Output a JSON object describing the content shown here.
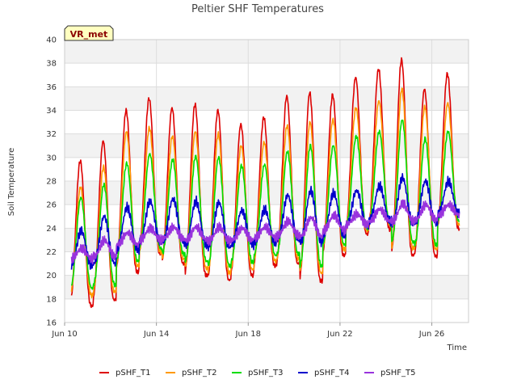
{
  "chart_data": {
    "type": "line",
    "title": "Peltier SHF Temperatures",
    "xlabel": "Time",
    "ylabel": "Soil Temperature",
    "badge": "VR_met",
    "x_start": "2023-06-10",
    "x_range_days": [
      0,
      17.6
    ],
    "ylim": [
      16,
      40
    ],
    "yticks": [
      16,
      18,
      20,
      22,
      24,
      26,
      28,
      30,
      32,
      34,
      36,
      38,
      40
    ],
    "xticks": [
      {
        "day": 0,
        "label": "Jun 10"
      },
      {
        "day": 4,
        "label": "Jun 14"
      },
      {
        "day": 8,
        "label": "Jun 18"
      },
      {
        "day": 12,
        "label": "Jun 22"
      },
      {
        "day": 16,
        "label": "Jun 26"
      }
    ],
    "grid": true,
    "banded_background": true,
    "legend_position": "bottom",
    "data_start_day": 0.3,
    "data_end_day": 17.2,
    "series": [
      {
        "name": "pSHF_T1",
        "color": "#dd0000",
        "daily_max": [
          29.7,
          31.4,
          34.0,
          35.0,
          34.2,
          34.5,
          34.0,
          32.8,
          33.4,
          35.2,
          35.5,
          35.3,
          36.8,
          37.5,
          38.3,
          35.8,
          37.1
        ],
        "daily_min": [
          17.4,
          17.9,
          20.3,
          21.8,
          21.0,
          20.0,
          19.6,
          20.0,
          20.8,
          21.0,
          19.5,
          21.7,
          23.5,
          23.9,
          21.7,
          21.6,
          24.0
        ]
      },
      {
        "name": "pSHF_T2",
        "color": "#ff9900",
        "daily_max": [
          27.5,
          29.2,
          32.2,
          32.5,
          31.8,
          32.2,
          32.0,
          31.0,
          31.3,
          32.7,
          33.0,
          33.2,
          34.2,
          34.8,
          35.8,
          34.3,
          34.6
        ],
        "daily_min": [
          18.3,
          18.6,
          20.8,
          22.0,
          21.4,
          20.6,
          20.2,
          20.5,
          21.2,
          21.4,
          20.2,
          22.2,
          23.8,
          24.2,
          22.3,
          22.2,
          24.3
        ]
      },
      {
        "name": "pSHF_T3",
        "color": "#00dd00",
        "daily_max": [
          26.6,
          27.7,
          29.5,
          30.3,
          29.8,
          30.1,
          30.0,
          29.3,
          29.4,
          30.5,
          31.0,
          31.0,
          31.8,
          32.2,
          33.2,
          31.6,
          32.2
        ],
        "daily_min": [
          18.9,
          19.2,
          21.2,
          22.3,
          21.8,
          21.2,
          20.8,
          21.1,
          21.7,
          21.8,
          20.8,
          22.6,
          24.0,
          24.4,
          22.8,
          22.6,
          24.6
        ]
      },
      {
        "name": "pSHF_T4",
        "color": "#0000cc",
        "daily_max": [
          23.8,
          25.0,
          25.8,
          26.3,
          26.5,
          26.3,
          26.2,
          25.5,
          25.6,
          26.8,
          27.2,
          27.0,
          27.2,
          27.6,
          28.3,
          28.0,
          28.0
        ],
        "daily_min": [
          20.8,
          21.0,
          22.2,
          22.8,
          22.8,
          22.6,
          22.4,
          22.6,
          22.8,
          23.0,
          22.8,
          23.4,
          24.2,
          24.6,
          24.4,
          24.4,
          25.2
        ]
      },
      {
        "name": "pSHF_T5",
        "color": "#9933dd",
        "daily_max": [
          22.3,
          23.0,
          23.6,
          24.0,
          24.1,
          24.1,
          24.1,
          24.0,
          24.1,
          24.6,
          24.9,
          25.1,
          25.2,
          25.6,
          26.1,
          26.0,
          26.0
        ],
        "daily_min": [
          21.4,
          21.6,
          22.6,
          23.0,
          23.1,
          23.0,
          22.9,
          23.0,
          23.2,
          23.4,
          23.3,
          23.8,
          24.3,
          24.6,
          24.6,
          24.7,
          25.1
        ]
      }
    ]
  }
}
